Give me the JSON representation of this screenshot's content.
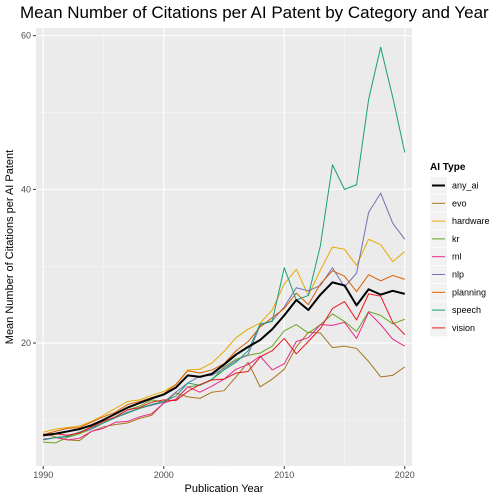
{
  "chart_data": {
    "type": "line",
    "title": "Mean Number of Citations per AI Patent by Category and Year",
    "xlabel": "Publication Year",
    "ylabel": "Mean Number of Citations per AI Patent",
    "xlim": [
      1989.4,
      2020.6
    ],
    "ylim": [
      4,
      61
    ],
    "x_ticks": [
      1990,
      2000,
      2010,
      2020
    ],
    "y_ticks": [
      20,
      40,
      60
    ],
    "grid": true,
    "legend_title": "AI Type",
    "legend_position": "right",
    "x": [
      1990,
      1991,
      1992,
      1993,
      1994,
      1995,
      1996,
      1997,
      1998,
      1999,
      2000,
      2001,
      2002,
      2003,
      2004,
      2005,
      2006,
      2007,
      2008,
      2009,
      2010,
      2011,
      2012,
      2013,
      2014,
      2015,
      2016,
      2017,
      2018,
      2019,
      2020
    ],
    "series": [
      {
        "name": "any_ai",
        "color": "#000000",
        "width": 2,
        "values": [
          8.0,
          8.2,
          8.5,
          8.8,
          9.3,
          10.0,
          10.8,
          11.6,
          12.2,
          12.8,
          13.3,
          14.2,
          15.8,
          15.6,
          16.0,
          17.2,
          18.5,
          19.5,
          20.4,
          21.8,
          23.6,
          25.6,
          24.3,
          26.3,
          27.9,
          27.5,
          24.9,
          27.0,
          26.3,
          26.8,
          26.4
        ]
      },
      {
        "name": "evo",
        "color": "#a6761d",
        "width": 1,
        "values": [
          8.2,
          7.8,
          7.4,
          7.3,
          8.5,
          9.1,
          9.4,
          9.6,
          10.2,
          10.6,
          12.2,
          13.5,
          13.0,
          12.8,
          13.6,
          13.8,
          15.6,
          17.5,
          14.3,
          15.3,
          16.6,
          19.5,
          21.4,
          21.3,
          19.4,
          19.6,
          19.3,
          17.6,
          15.6,
          15.8,
          16.9
        ]
      },
      {
        "name": "hardware",
        "color": "#e6ab02",
        "width": 1,
        "values": [
          8.4,
          8.8,
          9.0,
          9.2,
          9.8,
          10.6,
          11.5,
          12.4,
          12.6,
          13.2,
          13.7,
          14.6,
          16.5,
          16.6,
          17.4,
          18.9,
          20.7,
          21.8,
          22.6,
          24.3,
          27.7,
          29.6,
          26.2,
          29.5,
          32.5,
          32.2,
          30.1,
          33.5,
          32.8,
          30.6,
          31.9
        ]
      },
      {
        "name": "kr",
        "color": "#66a61e",
        "width": 1,
        "values": [
          7.1,
          7.0,
          7.7,
          8.2,
          8.8,
          9.6,
          10.4,
          11.3,
          11.8,
          12.6,
          12.3,
          12.6,
          14.3,
          14.5,
          15.2,
          16.9,
          17.9,
          18.4,
          18.7,
          19.6,
          21.6,
          22.4,
          21.3,
          22.4,
          23.8,
          22.8,
          21.5,
          24.1,
          23.6,
          22.5,
          23.1
        ]
      },
      {
        "name": "ml",
        "color": "#e7298a",
        "width": 1,
        "values": [
          7.5,
          7.7,
          7.4,
          7.6,
          8.5,
          8.9,
          9.7,
          9.8,
          10.4,
          10.8,
          12.2,
          12.7,
          14.3,
          13.6,
          14.4,
          15.3,
          16.6,
          17.2,
          18.3,
          16.5,
          17.3,
          20.2,
          20.7,
          22.4,
          22.3,
          22.7,
          20.6,
          24.0,
          22.4,
          20.5,
          19.6
        ]
      },
      {
        "name": "nlp",
        "color": "#7570b3",
        "width": 1,
        "values": [
          7.4,
          7.7,
          7.9,
          8.4,
          8.8,
          9.6,
          10.3,
          11.0,
          11.5,
          11.9,
          12.3,
          13.6,
          14.8,
          15.7,
          15.8,
          16.7,
          17.7,
          18.5,
          22.3,
          22.9,
          24.7,
          27.2,
          26.8,
          27.5,
          29.8,
          27.3,
          29.1,
          37.0,
          39.5,
          35.6,
          33.5
        ]
      },
      {
        "name": "planning",
        "color": "#d95f02",
        "width": 1,
        "values": [
          8.1,
          8.5,
          8.9,
          9.0,
          9.7,
          10.4,
          11.0,
          12.0,
          12.4,
          12.9,
          13.4,
          14.6,
          16.4,
          16.1,
          16.5,
          17.3,
          19.0,
          20.2,
          22.1,
          23.3,
          24.5,
          26.5,
          25.0,
          27.7,
          29.4,
          28.7,
          26.7,
          28.9,
          28.1,
          28.8,
          28.3
        ]
      },
      {
        "name": "speech",
        "color": "#1b9e77",
        "width": 1,
        "values": [
          7.4,
          7.7,
          7.8,
          8.4,
          9.0,
          9.6,
          10.3,
          10.9,
          11.5,
          12.0,
          12.4,
          13.1,
          14.8,
          14.5,
          15.3,
          16.5,
          17.5,
          19.0,
          22.5,
          22.8,
          29.8,
          25.6,
          26.2,
          32.7,
          43.2,
          40.0,
          40.6,
          51.7,
          58.5,
          52.0,
          44.8
        ]
      },
      {
        "name": "vision",
        "color": "#e41a1c",
        "width": 1,
        "values": [
          7.9,
          8.2,
          8.0,
          8.3,
          9.1,
          9.8,
          10.4,
          11.3,
          11.6,
          12.3,
          12.6,
          12.5,
          13.7,
          14.6,
          15.2,
          15.3,
          16.1,
          16.3,
          18.2,
          19.0,
          20.6,
          18.6,
          20.2,
          21.9,
          24.5,
          25.4,
          23.0,
          26.4,
          26.1,
          22.7,
          21.1
        ]
      }
    ]
  }
}
